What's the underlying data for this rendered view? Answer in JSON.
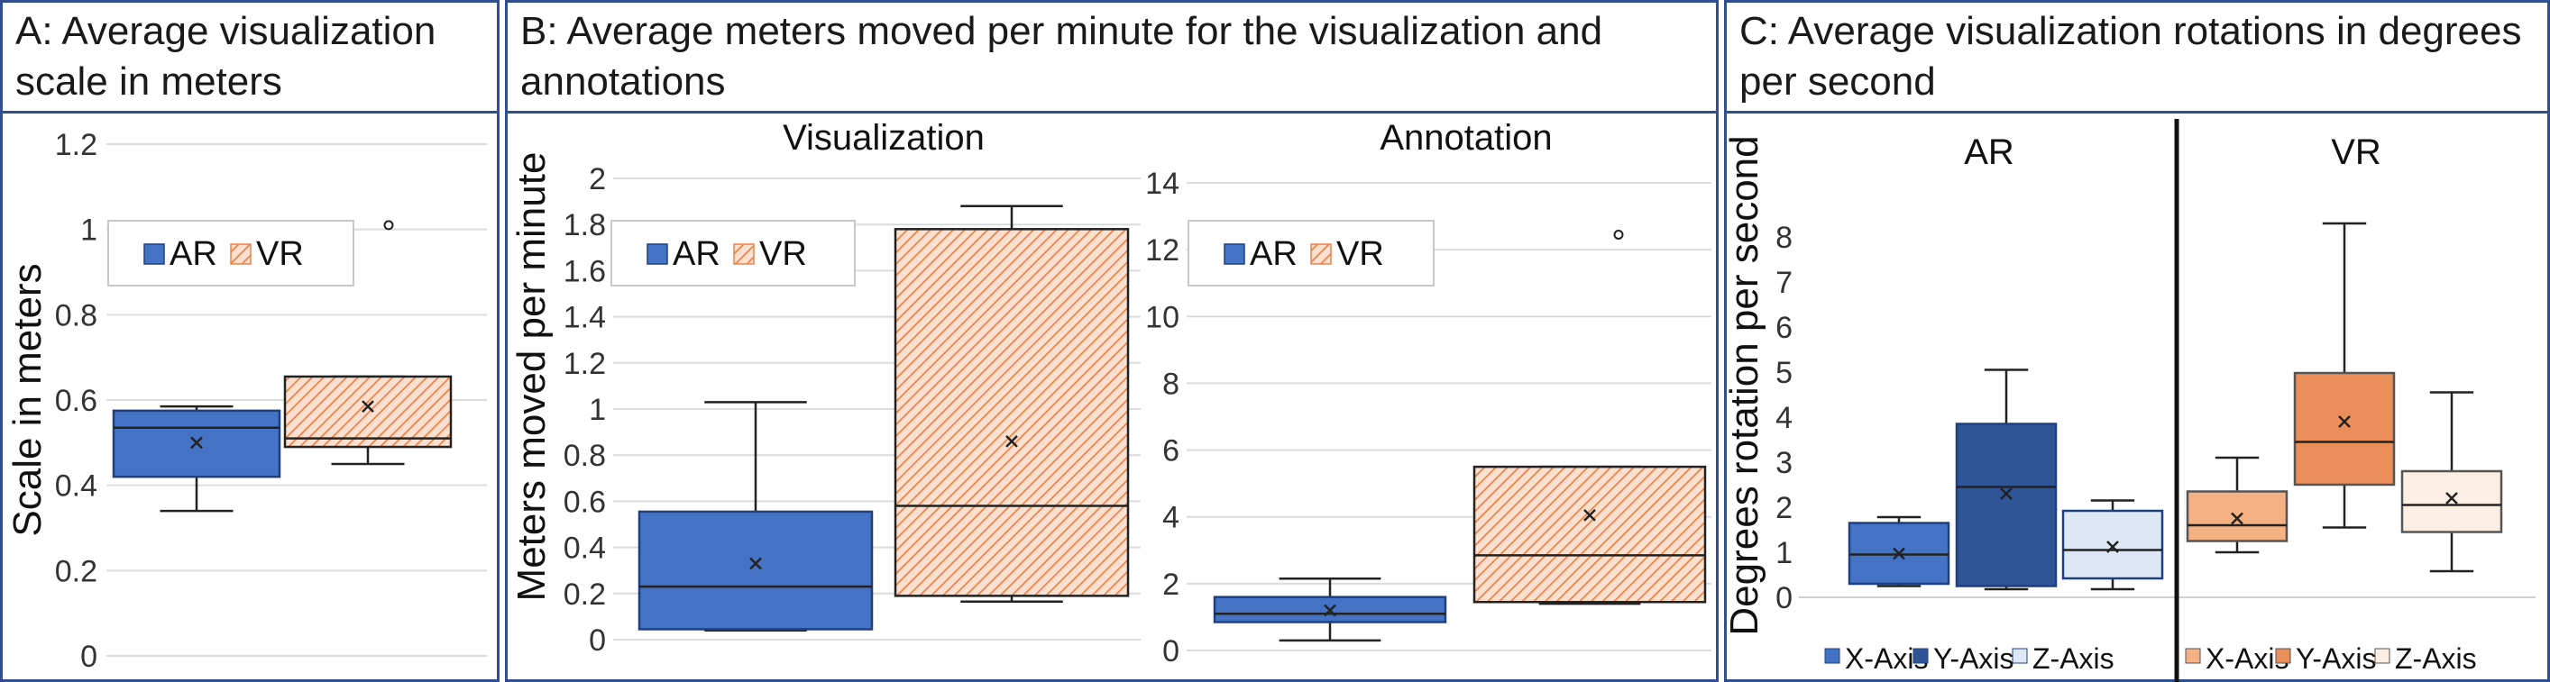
{
  "colors": {
    "frame": "#2f4f8f",
    "ar_fill": "#4472c4",
    "vr_hatch": "#e8834a",
    "vr_bg": "#fbe0cf",
    "y_axis_blue": "#2f5597",
    "z_axis_light": "#dde7f6",
    "ar_x_fill": "#f4b183",
    "ar_y_fill": "#eb8f5a",
    "vr_z_fill": "#fdeee3"
  },
  "panels": {
    "a": {
      "title": "A: Average visualization scale in meters"
    },
    "b": {
      "title": "B: Average meters moved per minute for the visualization and annotations"
    },
    "c": {
      "title": "C: Average visualization rotations in degrees per second"
    }
  },
  "chart_data": [
    {
      "id": "A",
      "type": "box",
      "title": "A: Average visualization scale in meters",
      "ylabel": "Scale in meters",
      "ylim": [
        0,
        1.2
      ],
      "yticks": [
        0,
        0.2,
        0.4,
        0.6,
        0.8,
        1,
        1.2
      ],
      "ytick_labels": [
        "0",
        "0.2",
        "0.4",
        "0.6",
        "0.8",
        "1",
        "1.2"
      ],
      "legend": [
        "AR",
        "VR"
      ],
      "boxes": [
        {
          "name": "AR",
          "min": 0.34,
          "q1": 0.42,
          "median": 0.535,
          "q3": 0.575,
          "max": 0.585,
          "mean": 0.5,
          "outliers": []
        },
        {
          "name": "VR",
          "min": 0.45,
          "q1": 0.49,
          "median": 0.51,
          "q3": 0.655,
          "max": 0.655,
          "mean": 0.585,
          "outliers": [
            1.01
          ]
        }
      ]
    },
    {
      "id": "B-visualization",
      "type": "box",
      "title": "Visualization",
      "ylabel": "Meters moved per minute",
      "ylim": [
        0,
        2
      ],
      "yticks": [
        0,
        0.2,
        0.4,
        0.6,
        0.8,
        1,
        1.2,
        1.4,
        1.6,
        1.8,
        2
      ],
      "ytick_labels": [
        "0",
        "0.2",
        "0.4",
        "0.6",
        "0.8",
        "1",
        "1.2",
        "1.4",
        "1.6",
        "1.8",
        "2"
      ],
      "legend": [
        "AR",
        "VR"
      ],
      "boxes": [
        {
          "name": "AR",
          "min": 0.04,
          "q1": 0.045,
          "median": 0.23,
          "q3": 0.555,
          "max": 1.03,
          "mean": 0.33,
          "outliers": []
        },
        {
          "name": "VR",
          "min": 0.165,
          "q1": 0.19,
          "median": 0.58,
          "q3": 1.78,
          "max": 1.88,
          "mean": 0.86,
          "outliers": []
        }
      ]
    },
    {
      "id": "B-annotation",
      "type": "box",
      "title": "Annotation",
      "ylim": [
        0,
        14
      ],
      "yticks": [
        0,
        2,
        4,
        6,
        8,
        10,
        12,
        14
      ],
      "ytick_labels": [
        "0",
        "2",
        "4",
        "6",
        "8",
        "10",
        "12",
        "14"
      ],
      "legend": [
        "AR",
        "VR"
      ],
      "boxes": [
        {
          "name": "AR",
          "min": 0.3,
          "q1": 0.85,
          "median": 1.1,
          "q3": 1.6,
          "max": 2.15,
          "mean": 1.2,
          "outliers": []
        },
        {
          "name": "VR",
          "min": 1.4,
          "q1": 1.45,
          "median": 2.85,
          "q3": 5.5,
          "max": 5.5,
          "mean": 4.05,
          "outliers": [
            12.45
          ]
        }
      ]
    },
    {
      "id": "C",
      "type": "box",
      "title": "C: Average visualization rotations in degrees per second",
      "ylabel": "Degrees rotation per second",
      "ylim": [
        0,
        8.6
      ],
      "yticks": [
        0,
        1,
        2,
        3,
        4,
        5,
        6,
        7,
        8
      ],
      "ytick_labels": [
        "0",
        "1",
        "2",
        "3",
        "4",
        "5",
        "6",
        "7",
        "8"
      ],
      "groups": [
        "AR",
        "VR"
      ],
      "legend_ar": [
        "X-Axis",
        "Y-Axis",
        "Z-Axis"
      ],
      "legend_vr": [
        "X-Axis",
        "Y-Axis",
        "Z-Axis"
      ],
      "boxes": [
        {
          "group": "AR",
          "name": "X-Axis",
          "min": 0.25,
          "q1": 0.3,
          "median": 0.95,
          "q3": 1.65,
          "max": 1.78,
          "mean": 0.97,
          "outliers": []
        },
        {
          "group": "AR",
          "name": "Y-Axis",
          "min": 0.18,
          "q1": 0.25,
          "median": 2.45,
          "q3": 3.85,
          "max": 5.05,
          "mean": 2.3,
          "outliers": []
        },
        {
          "group": "AR",
          "name": "Z-Axis",
          "min": 0.18,
          "q1": 0.42,
          "median": 1.05,
          "q3": 1.92,
          "max": 2.15,
          "mean": 1.12,
          "outliers": []
        },
        {
          "group": "VR",
          "name": "X-Axis",
          "min": 1.0,
          "q1": 1.25,
          "median": 1.6,
          "q3": 2.35,
          "max": 3.1,
          "mean": 1.75,
          "outliers": []
        },
        {
          "group": "VR",
          "name": "Y-Axis",
          "min": 1.55,
          "q1": 2.5,
          "median": 3.45,
          "q3": 4.98,
          "max": 8.3,
          "mean": 3.9,
          "outliers": []
        },
        {
          "group": "VR",
          "name": "Z-Axis",
          "min": 0.58,
          "q1": 1.45,
          "median": 2.05,
          "q3": 2.8,
          "max": 4.55,
          "mean": 2.2,
          "outliers": []
        }
      ]
    }
  ]
}
